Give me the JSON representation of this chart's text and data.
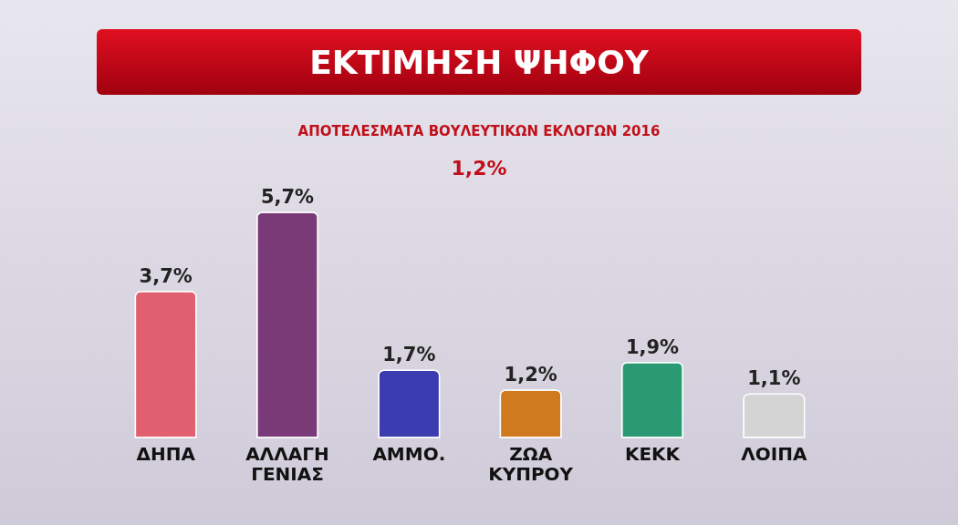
{
  "chart_data": {
    "type": "bar",
    "title": "ΕΚΤΙΜΗΣΗ ΨΗΦΟΥ",
    "subtitle": "ΑΠΟΤΕΛΕΣΜΑΤΑ ΒΟΥΛΕΥΤΙΚΩΝ ΕΚΛΟΓΩΝ 2016",
    "annotations": [
      "1,2%"
    ],
    "categories": [
      "ΔΗΠΑ",
      "ΑΛΛΑΓΗ ΓΕΝΙΑΣ",
      "ΑΜΜΟ.",
      "ΖΩΑ ΚΥΠΡΟΥ",
      "ΚΕΚΚ",
      "ΛΟΙΠΑ"
    ],
    "values": [
      3.7,
      5.7,
      1.7,
      1.2,
      1.9,
      1.1
    ],
    "colors": [
      "#e06070",
      "#7a3a78",
      "#3a3cb0",
      "#d07a20",
      "#2a9a72",
      "#d4d4d4"
    ],
    "value_labels": [
      "3,7%",
      "5,7%",
      "1,7%",
      "1,2%",
      "1,9%",
      "1,1%"
    ],
    "grid": false,
    "legend": false
  }
}
